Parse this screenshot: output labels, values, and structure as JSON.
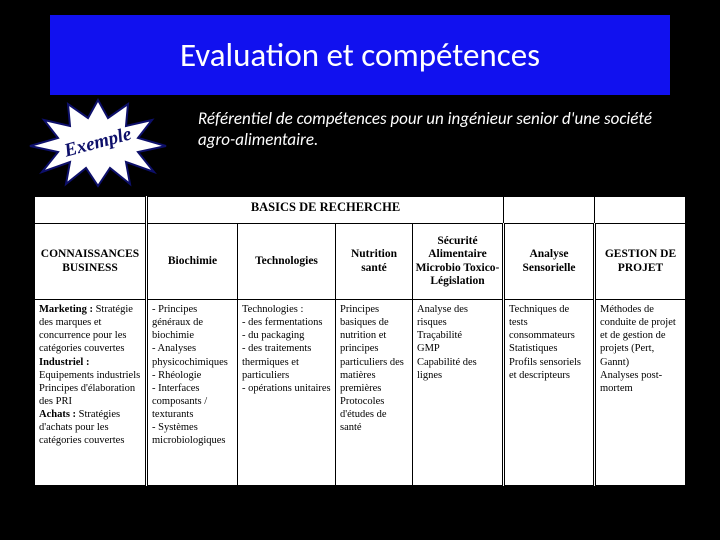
{
  "colors": {
    "banner": "#1111ef",
    "page_bg": "#000000",
    "table_bg": "#ffffff",
    "burst_stroke": "#0d0f6a",
    "burst_fill": "#ffffff"
  },
  "banner": {
    "title": "Evaluation et compétences"
  },
  "starburst": {
    "label": "Exemple"
  },
  "intro": "Référentiel de compétences pour un ingénieur senior d'une société agro-alimentaire.",
  "table": {
    "group_header": "BASICS DE RECHERCHE",
    "headers": {
      "c0": "CONNAISSANCES BUSINESS",
      "c1": "Biochimie",
      "c2": "Technologies",
      "c3": "Nutrition santé",
      "c4": "Sécurité Alimentaire Microbio Toxico- Législation",
      "c5": "Analyse Sensorielle",
      "c6": "GESTION DE PROJET"
    },
    "body": {
      "c0": [
        {
          "lead": "Marketing :",
          "text": " Stratégie des marques et concurrence pour les catégories couvertes"
        },
        {
          "lead": "Industriel :",
          "text": " Equipements industriels Principes d'élaboration des PRI"
        },
        {
          "lead": "Achats :",
          "text": " Stratégies d'achats pour les catégories couvertes"
        }
      ],
      "c1": "- Principes généraux de biochimie\n- Analyses physicochimiques\n- Rhéologie\n- Interfaces composants / texturants\n- Systèmes microbiologiques",
      "c2": "Technologies :\n- des fermentations\n- du packaging\n- des traitements thermiques et particuliers\n- opérations unitaires",
      "c3": "Principes basiques de nutrition et principes particuliers des matières premières\nProtocoles d'études de santé",
      "c4": "Analyse des risques\nTraçabilité\nGMP\nCapabilité des lignes",
      "c5": "Techniques de tests consommateurs\nStatistiques\nProfils sensoriels et descripteurs",
      "c6": "Méthodes de conduite de projet et de gestion de projets (Pert, Gannt)\nAnalyses post-mortem"
    }
  }
}
